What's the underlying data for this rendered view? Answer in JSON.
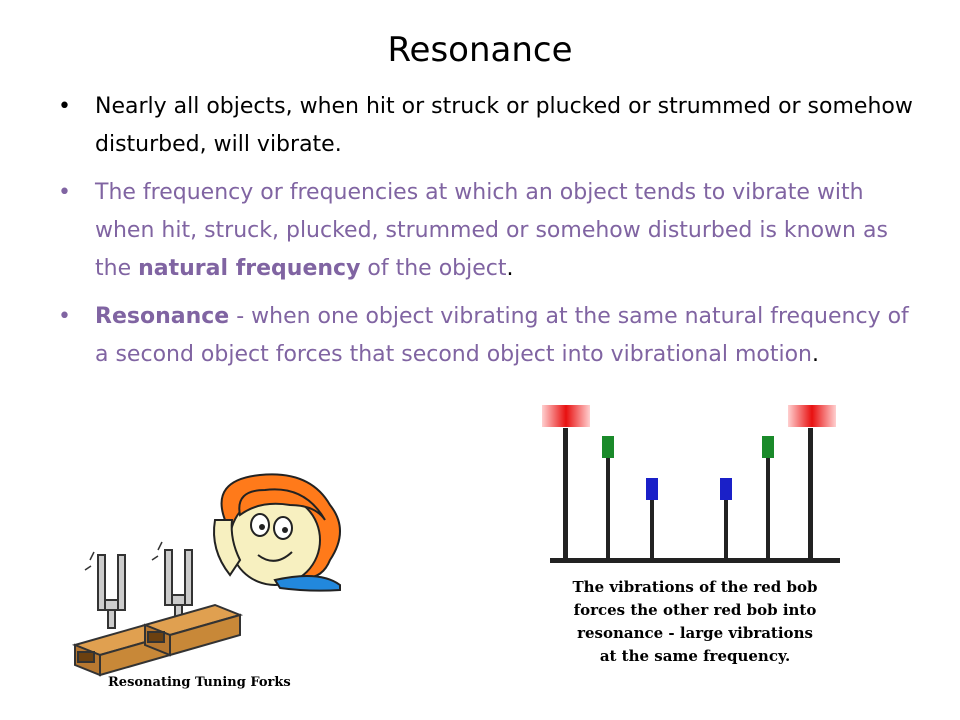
{
  "slide": {
    "title": "Resonance",
    "bullets": [
      {
        "text": "Nearly all objects, when hit or struck or plucked or strummed or somehow disturbed, will vibrate."
      },
      {
        "before": "The frequency or frequencies at which an object tends to vibrate with when hit, struck, plucked, strummed or somehow disturbed is known as the ",
        "bold": "natural frequency",
        "after": " of the object",
        "end": "."
      },
      {
        "bold": "Resonance",
        "after": " - when one object vibrating at the same natural frequency of a second object forces that second object into vibrational motion",
        "end": "."
      }
    ]
  },
  "left_illustration": {
    "caption": "Resonating Tuning Forks",
    "icons": [
      "tuning-fork-icon",
      "wooden-box-icon",
      "person-listening-icon"
    ]
  },
  "right_illustration": {
    "caption_lines": [
      "The vibrations of the red bob",
      "forces the other red bob into",
      "resonance - large vibrations",
      "at the same frequency."
    ],
    "colors": {
      "red": "#e81010",
      "green": "#1a8a2a",
      "blue": "#1a20c8",
      "stand": "#222222"
    }
  }
}
